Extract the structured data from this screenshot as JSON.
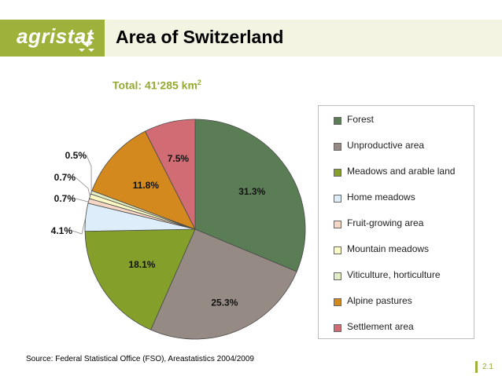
{
  "header": {
    "logo_text": "agristat",
    "title": "Area of Switzerland"
  },
  "subtitle": {
    "text": "Total: 41‘285 km",
    "superscript": "2"
  },
  "chart_data": {
    "type": "pie",
    "total_label": "Total: 41‘285 km²",
    "legend_position": "right",
    "slices": [
      {
        "label": "Forest",
        "value": 31.3,
        "value_label": "31.3%",
        "color": "#5b7d56"
      },
      {
        "label": "Unproductive area",
        "value": 25.3,
        "value_label": "25.3%",
        "color": "#968b84"
      },
      {
        "label": "Meadows and arable land",
        "value": 18.1,
        "value_label": "18.1%",
        "color": "#84a02a"
      },
      {
        "label": "Home meadows",
        "value": 4.1,
        "value_label": "4.1%",
        "color": "#ddeefa"
      },
      {
        "label": "Fruit-growing area",
        "value": 0.7,
        "value_label": "0.7%",
        "color": "#f6d7c6"
      },
      {
        "label": "Mountain meadows",
        "value": 0.7,
        "value_label": "0.7%",
        "color": "#fbfac4"
      },
      {
        "label": "Viticulture, horticulture",
        "value": 0.5,
        "value_label": "0.5%",
        "color": "#e3edc3"
      },
      {
        "label": "Alpine pastures",
        "value": 11.8,
        "value_label": "11.8%",
        "color": "#d4891f"
      },
      {
        "label": "Settlement area",
        "value": 7.5,
        "value_label": "7.5%",
        "color": "#d16b74"
      }
    ]
  },
  "footer": {
    "source": "Source: Federal Statistical Office (FSO), Areastatistics 2004/2009",
    "page_number": "2.1"
  }
}
